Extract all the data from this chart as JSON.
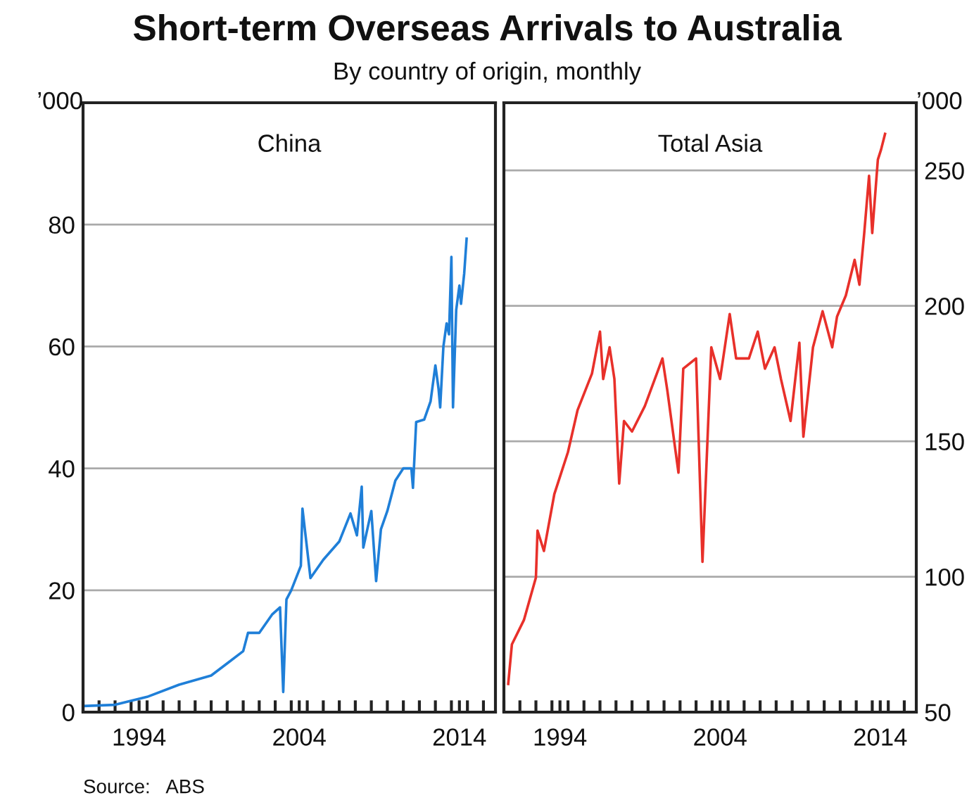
{
  "chart_data": [
    {
      "type": "line",
      "title": "Short-term Overseas Arrivals to Australia",
      "subtitle": "By country of origin, monthly",
      "annotations": [
        "China",
        "Source:   ABS"
      ],
      "ylabel": "’000",
      "xlim": [
        1990.5,
        2016.25
      ],
      "ylim": [
        0,
        100
      ],
      "yticks": [
        0,
        20,
        40,
        60,
        80
      ],
      "xticks": [
        {
          "value": 1990.5,
          "label": null
        },
        {
          "value": 1991.5,
          "label": null
        },
        {
          "value": 1992.5,
          "label": null
        },
        {
          "value": 1993.5,
          "label": null
        },
        {
          "value": 1994.5,
          "label": null
        },
        {
          "value": 1995.5,
          "label": null
        },
        {
          "value": 1996.5,
          "label": null
        },
        {
          "value": 1997.5,
          "label": null
        },
        {
          "value": 1998.5,
          "label": null
        },
        {
          "value": 1999.5,
          "label": null
        },
        {
          "value": 2000.5,
          "label": null
        },
        {
          "value": 2001.5,
          "label": null
        },
        {
          "value": 2002.5,
          "label": null
        },
        {
          "value": 2003.5,
          "label": null
        },
        {
          "value": 2004.5,
          "label": null
        },
        {
          "value": 2005.5,
          "label": null
        },
        {
          "value": 2006.5,
          "label": null
        },
        {
          "value": 2007.5,
          "label": null
        },
        {
          "value": 2008.5,
          "label": null
        },
        {
          "value": 2009.5,
          "label": null
        },
        {
          "value": 2010.5,
          "label": null
        },
        {
          "value": 2011.5,
          "label": null
        },
        {
          "value": 2012.5,
          "label": null
        },
        {
          "value": 2013.5,
          "label": null
        },
        {
          "value": 2014.5,
          "label": null
        },
        {
          "value": 2015.5,
          "label": null
        },
        1994,
        2004,
        2014
      ],
      "grid": "y",
      "series": [
        {
          "color": "#1f7fd8",
          "x": [
            1990.5,
            1992.5,
            1994.5,
            1996.5,
            1998.5,
            1999.5,
            2000.5,
            2000.8,
            2001.5,
            2002.3,
            2002.8,
            2003.0,
            2003.2,
            2003.5,
            2004.1,
            2004.2,
            2004.7,
            2005.5,
            2006.5,
            2007.2,
            2007.6,
            2007.9,
            2008.0,
            2008.5,
            2008.8,
            2009.1,
            2009.5,
            2010.0,
            2010.5,
            2011.0,
            2011.1,
            2011.3,
            2011.8,
            2012.2,
            2012.5,
            2012.7,
            2012.8,
            2013.0,
            2013.2,
            2013.35,
            2013.5,
            2013.6,
            2013.8,
            2014.0,
            2014.1,
            2014.3,
            2014.45
          ],
          "values": [
            1.0,
            1.2,
            2.5,
            4.5,
            6.0,
            8.0,
            10.0,
            13.0,
            13.0,
            16.0,
            17.2,
            3.3,
            18.5,
            20.0,
            24.0,
            33.4,
            22.0,
            25.0,
            28.0,
            32.6,
            29.0,
            37.0,
            27.0,
            33.0,
            21.5,
            30.0,
            33.0,
            38.0,
            40.0,
            40.0,
            36.8,
            47.6,
            48.0,
            51.0,
            56.9,
            53.0,
            50.0,
            60.0,
            63.8,
            62.0,
            74.7,
            50.0,
            66.0,
            70.0,
            67.0,
            72.0,
            77.7
          ]
        }
      ]
    },
    {
      "type": "line",
      "annotations": [
        "Total Asia"
      ],
      "y2label": "’000",
      "xlim": [
        1990.5,
        2016.25
      ],
      "y2lim": [
        50,
        275
      ],
      "y2ticks": [
        50,
        100,
        150,
        200,
        250
      ],
      "xticks": [
        {
          "value": 1990.5,
          "label": null
        },
        {
          "value": 1991.5,
          "label": null
        },
        {
          "value": 1992.5,
          "label": null
        },
        {
          "value": 1993.5,
          "label": null
        },
        {
          "value": 1994.5,
          "label": null
        },
        {
          "value": 1995.5,
          "label": null
        },
        {
          "value": 1996.5,
          "label": null
        },
        {
          "value": 1997.5,
          "label": null
        },
        {
          "value": 1998.5,
          "label": null
        },
        {
          "value": 1999.5,
          "label": null
        },
        {
          "value": 2000.5,
          "label": null
        },
        {
          "value": 2001.5,
          "label": null
        },
        {
          "value": 2002.5,
          "label": null
        },
        {
          "value": 2003.5,
          "label": null
        },
        {
          "value": 2004.5,
          "label": null
        },
        {
          "value": 2005.5,
          "label": null
        },
        {
          "value": 2006.5,
          "label": null
        },
        {
          "value": 2007.5,
          "label": null
        },
        {
          "value": 2008.5,
          "label": null
        },
        {
          "value": 2009.5,
          "label": null
        },
        {
          "value": 2010.5,
          "label": null
        },
        {
          "value": 2011.5,
          "label": null
        },
        {
          "value": 2012.5,
          "label": null
        },
        {
          "value": 2013.5,
          "label": null
        },
        {
          "value": 2014.5,
          "label": null
        },
        {
          "value": 2015.5,
          "label": null
        },
        1994,
        2004,
        2014
      ],
      "grid": "y",
      "series": [
        {
          "color": "#e8302a",
          "axis": "y2",
          "x": [
            1990.77,
            1991.0,
            1991.75,
            1992.5,
            1992.6,
            1993.0,
            1993.65,
            1994.5,
            1995.1,
            1996.0,
            1996.5,
            1996.7,
            1997.1,
            1997.4,
            1997.7,
            1998.0,
            1998.5,
            1999.3,
            2000.4,
            2000.7,
            2001.4,
            2001.7,
            2002.5,
            2002.9,
            2003.45,
            2004.0,
            2004.6,
            2005.0,
            2005.8,
            2006.35,
            2006.8,
            2007.4,
            2007.8,
            2008.4,
            2008.95,
            2009.2,
            2009.8,
            2010.4,
            2011.0,
            2011.3,
            2011.85,
            2012.4,
            2012.7,
            2013.0,
            2013.3,
            2013.5,
            2013.85,
            2014.05,
            2014.3
          ],
          "values": [
            60.4,
            75,
            84,
            99.7,
            117,
            109.5,
            130.5,
            146,
            161.5,
            175,
            190.5,
            173,
            184.7,
            173,
            134.4,
            157.5,
            153.6,
            163,
            180.6,
            169,
            138.4,
            176.8,
            180.6,
            105.5,
            184.7,
            173,
            197,
            180.6,
            180.6,
            190.5,
            176.8,
            184.7,
            173,
            157.5,
            186.4,
            151.7,
            184.7,
            198,
            184.7,
            196,
            203.8,
            217,
            207.8,
            226.9,
            248,
            226.9,
            254,
            257.7,
            263.5
          ]
        }
      ]
    }
  ]
}
